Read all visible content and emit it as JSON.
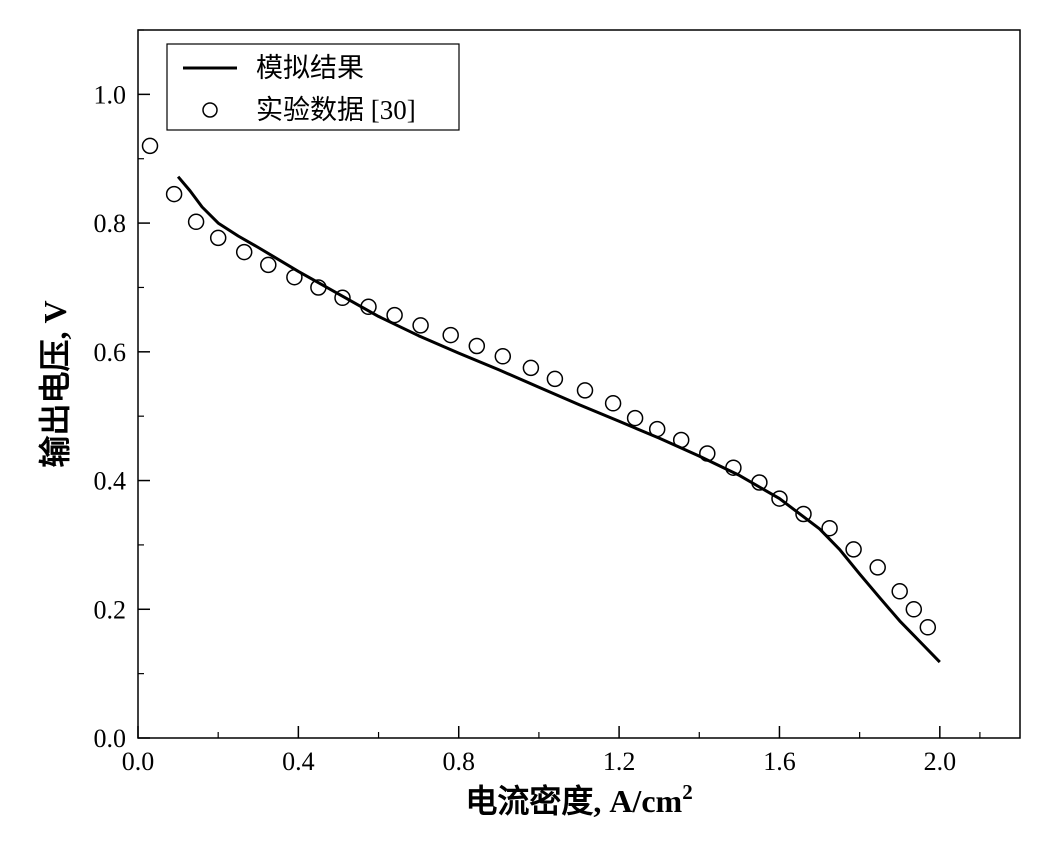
{
  "chart_data": {
    "type": "line",
    "xlabel": "电流密度, A/cm",
    "xlabel_superscript": "2",
    "ylabel": "输出电压, V",
    "xlim": [
      0.0,
      2.2
    ],
    "ylim": [
      0.0,
      1.1
    ],
    "x_ticks": [
      0.0,
      0.4,
      0.8,
      1.2,
      1.6,
      2.0
    ],
    "x_tick_labels": [
      "0.0",
      "0.4",
      "0.8",
      "1.2",
      "1.6",
      "2.0"
    ],
    "y_ticks": [
      0.0,
      0.2,
      0.4,
      0.6,
      0.8,
      1.0
    ],
    "y_tick_labels": [
      "0.0",
      "0.2",
      "0.4",
      "0.6",
      "0.8",
      "1.0"
    ],
    "grid": false,
    "legend_position": "top-left",
    "series": [
      {
        "name": "模拟结果",
        "style": "line",
        "color": "#000000",
        "x": [
          0.1,
          0.13,
          0.16,
          0.2,
          0.25,
          0.3,
          0.4,
          0.5,
          0.6,
          0.7,
          0.8,
          0.9,
          1.0,
          1.1,
          1.2,
          1.3,
          1.4,
          1.5,
          1.6,
          1.7,
          1.75,
          1.8,
          1.85,
          1.9,
          1.95,
          2.0
        ],
        "y": [
          0.872,
          0.85,
          0.825,
          0.8,
          0.78,
          0.762,
          0.725,
          0.69,
          0.655,
          0.625,
          0.598,
          0.572,
          0.545,
          0.518,
          0.492,
          0.466,
          0.438,
          0.408,
          0.372,
          0.325,
          0.293,
          0.255,
          0.218,
          0.182,
          0.15,
          0.118
        ]
      },
      {
        "name": "实验数据 [30]",
        "style": "scatter",
        "marker": "open-circle",
        "color": "#000000",
        "x": [
          0.03,
          0.09,
          0.145,
          0.2,
          0.265,
          0.325,
          0.39,
          0.45,
          0.51,
          0.575,
          0.64,
          0.705,
          0.78,
          0.845,
          0.91,
          0.98,
          1.04,
          1.115,
          1.185,
          1.24,
          1.295,
          1.355,
          1.42,
          1.485,
          1.55,
          1.6,
          1.66,
          1.725,
          1.785,
          1.845,
          1.9,
          1.935,
          1.97
        ],
        "y": [
          0.92,
          0.845,
          0.802,
          0.777,
          0.755,
          0.735,
          0.716,
          0.7,
          0.684,
          0.67,
          0.657,
          0.641,
          0.626,
          0.609,
          0.593,
          0.575,
          0.558,
          0.54,
          0.52,
          0.497,
          0.48,
          0.463,
          0.442,
          0.42,
          0.397,
          0.372,
          0.348,
          0.326,
          0.293,
          0.265,
          0.228,
          0.2,
          0.172
        ]
      }
    ]
  }
}
